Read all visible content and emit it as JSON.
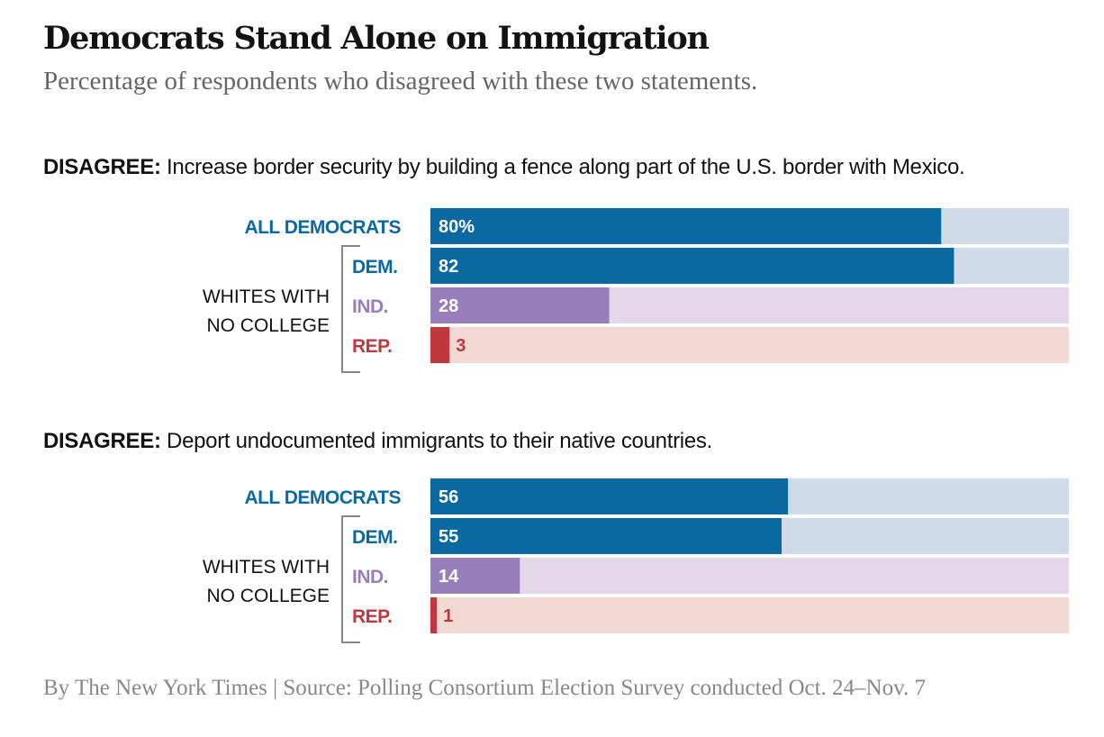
{
  "title": "Democrats Stand Alone on Immigration",
  "subtitle": "Percentage of respondents who disagreed with these two statements.",
  "source": "By The New York Times | Source: Polling Consortium Election Survey conducted Oct. 24–Nov. 7",
  "colors": {
    "dem": "#0a69a0",
    "dem_bg": "#cfdbe9",
    "ind": "#987ebb",
    "ind_bg": "#e3d7e9",
    "rep": "#c0383d",
    "rep_bg": "#f3d9d3"
  },
  "chart_data": [
    {
      "type": "bar",
      "orientation": "horizontal",
      "prefix": "DISAGREE:",
      "title": "Increase border security by building a fence along part of the U.S. border with Mexico.",
      "group_label": [
        "WHITES WITH",
        "NO COLLEGE"
      ],
      "categories": [
        "ALL DEMOCRATS",
        "DEM.",
        "IND.",
        "REP."
      ],
      "values": [
        80,
        82,
        28,
        3
      ],
      "value_labels": [
        "80%",
        "82",
        "28",
        "3"
      ],
      "party": [
        "dem",
        "dem",
        "ind",
        "rep"
      ],
      "xlim": [
        0,
        100
      ]
    },
    {
      "type": "bar",
      "orientation": "horizontal",
      "prefix": "DISAGREE:",
      "title": "Deport undocumented immigrants to their native countries.",
      "group_label": [
        "WHITES WITH",
        "NO COLLEGE"
      ],
      "categories": [
        "ALL DEMOCRATS",
        "DEM.",
        "IND.",
        "REP."
      ],
      "values": [
        56,
        55,
        14,
        1
      ],
      "value_labels": [
        "56",
        "55",
        "14",
        "1"
      ],
      "party": [
        "dem",
        "dem",
        "ind",
        "rep"
      ],
      "xlim": [
        0,
        100
      ]
    }
  ]
}
